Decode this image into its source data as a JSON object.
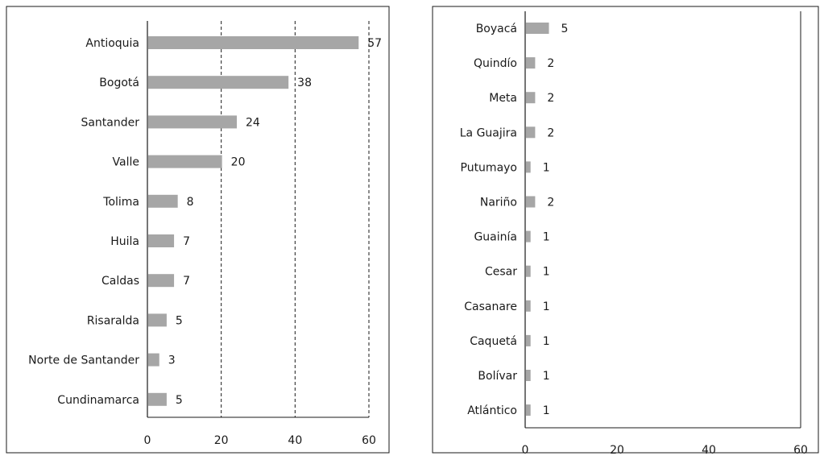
{
  "chart_data": [
    {
      "type": "bar",
      "orientation": "horizontal",
      "categories": [
        "Antioquia",
        "Bogotá",
        "Santander",
        "Valle",
        "Tolima",
        "Huila",
        "Caldas",
        "Risaralda",
        "Norte de Santander",
        "Cundinamarca"
      ],
      "values": [
        57,
        38,
        24,
        20,
        8,
        7,
        7,
        5,
        3,
        5
      ],
      "xlim": [
        0,
        60
      ],
      "xticks": [
        0,
        20,
        40,
        60
      ],
      "grid": "dashed vertical lines at 20, 40, 60",
      "bar_color": "#a6a6a6",
      "data_labels": true
    },
    {
      "type": "bar",
      "orientation": "horizontal",
      "categories": [
        "Boyacá",
        "Quindío",
        "Meta",
        "La Guajira",
        "Putumayo",
        "Nariño",
        "Guainía",
        "Cesar",
        "Casanare",
        "Caquetá",
        "Bolívar",
        "Atlántico"
      ],
      "values": [
        5,
        2,
        2,
        2,
        1,
        2,
        1,
        1,
        1,
        1,
        1,
        1
      ],
      "xlim": [
        0,
        60
      ],
      "xticks": [
        0,
        20,
        40,
        60
      ],
      "grid": "none",
      "bar_color": "#a6a6a6",
      "data_labels": true
    }
  ]
}
